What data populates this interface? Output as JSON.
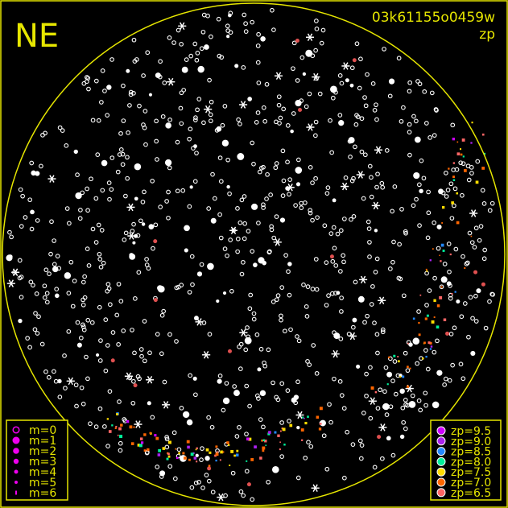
{
  "title": "NE",
  "image_id": "03k61155o0459w",
  "mode_label": "zp",
  "colors": {
    "frame": "#e6e600",
    "star": "#ffffff",
    "magnitude_marker": "#ee00ee"
  },
  "magnitude_legend": [
    {
      "label": "m=0"
    },
    {
      "label": "m=1"
    },
    {
      "label": "m=2"
    },
    {
      "label": "m=3"
    },
    {
      "label": "m=4"
    },
    {
      "label": "m=5"
    },
    {
      "label": "m=6"
    }
  ],
  "zp_legend": [
    {
      "label": "zp=9.5",
      "color": "#cc00ff"
    },
    {
      "label": "zp=9.0",
      "color": "#aa22ee"
    },
    {
      "label": "zp=8.5",
      "color": "#2288ff"
    },
    {
      "label": "zp=8.0",
      "color": "#00ee99"
    },
    {
      "label": "zp=7.5",
      "color": "#ffdd00"
    },
    {
      "label": "zp=7.0",
      "color": "#ff6600"
    },
    {
      "label": "zp=6.5",
      "color": "#ff6666"
    }
  ]
}
